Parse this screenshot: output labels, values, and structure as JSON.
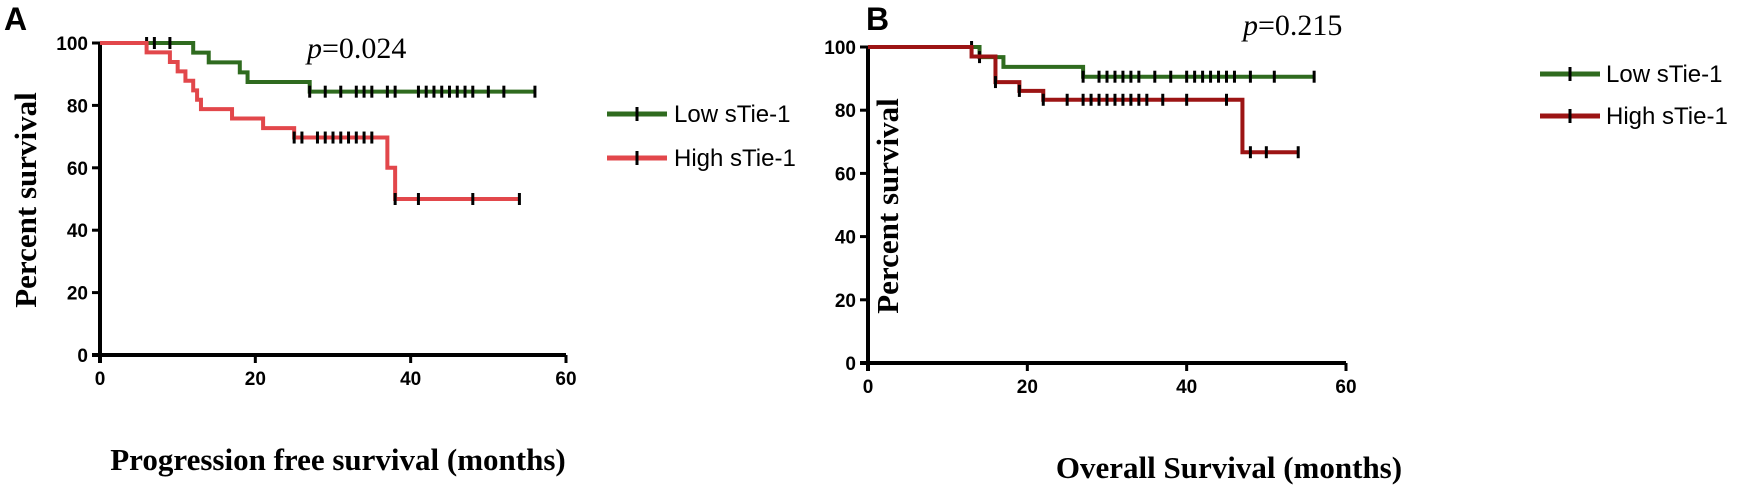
{
  "colors": {
    "low_A": "#2f6b1f",
    "high_A": "#e2474b",
    "low_B": "#2f6b1f",
    "high_B": "#9c1414",
    "axis": "#000000"
  },
  "chart_data": [
    {
      "type": "line",
      "step": true,
      "panel_label": "A",
      "annotation_p": "p",
      "annotation_value": "=0.024",
      "xlabel": "Progression free survival (months)",
      "ylabel": "Percent survival",
      "xlim": [
        0,
        60
      ],
      "ylim": [
        0,
        100
      ],
      "xticks": [
        0,
        20,
        40,
        60
      ],
      "yticks": [
        0,
        20,
        40,
        60,
        80,
        100
      ],
      "legend_position": "right",
      "series": [
        {
          "name": "Low sTie-1",
          "color_key": "low_A",
          "steps": [
            [
              0,
              100
            ],
            [
              12,
              96.9
            ],
            [
              14,
              93.8
            ],
            [
              18,
              90.6
            ],
            [
              19,
              87.5
            ],
            [
              27,
              84.4
            ],
            [
              56,
              84.4
            ]
          ],
          "censored": [
            [
              6,
              100
            ],
            [
              7,
              100
            ],
            [
              9,
              100
            ],
            [
              27,
              84.4
            ],
            [
              29,
              84.4
            ],
            [
              31,
              84.4
            ],
            [
              33,
              84.4
            ],
            [
              34,
              84.4
            ],
            [
              35,
              84.4
            ],
            [
              37,
              84.4
            ],
            [
              38,
              84.4
            ],
            [
              41,
              84.4
            ],
            [
              42,
              84.4
            ],
            [
              43,
              84.4
            ],
            [
              44,
              84.4
            ],
            [
              45,
              84.4
            ],
            [
              46,
              84.4
            ],
            [
              47,
              84.4
            ],
            [
              48,
              84.4
            ],
            [
              50,
              84.4
            ],
            [
              52,
              84.4
            ],
            [
              56,
              84.4
            ]
          ]
        },
        {
          "name": "High sTie-1",
          "color_key": "high_A",
          "steps": [
            [
              0,
              100
            ],
            [
              6,
              97
            ],
            [
              9,
              93.9
            ],
            [
              10,
              90.9
            ],
            [
              11,
              87.9
            ],
            [
              12,
              84.8
            ],
            [
              12.5,
              81.8
            ],
            [
              13,
              78.8
            ],
            [
              17,
              75.8
            ],
            [
              21,
              72.7
            ],
            [
              25,
              69.7
            ],
            [
              37,
              60
            ],
            [
              38,
              50
            ],
            [
              54,
              50
            ]
          ],
          "censored": [
            [
              25,
              69.7
            ],
            [
              26,
              69.7
            ],
            [
              28,
              69.7
            ],
            [
              29,
              69.7
            ],
            [
              30,
              69.7
            ],
            [
              31,
              69.7
            ],
            [
              32,
              69.7
            ],
            [
              33,
              69.7
            ],
            [
              34,
              69.7
            ],
            [
              35,
              69.7
            ],
            [
              38,
              50
            ],
            [
              41,
              50
            ],
            [
              48,
              50
            ],
            [
              54,
              50
            ]
          ]
        }
      ]
    },
    {
      "type": "line",
      "step": true,
      "panel_label": "B",
      "annotation_p": "p",
      "annotation_value": "=0.215",
      "xlabel": "Overall Survival (months)",
      "ylabel": "Percent survival",
      "xlim": [
        0,
        60
      ],
      "ylim": [
        0,
        100
      ],
      "xticks": [
        0,
        20,
        40,
        60
      ],
      "yticks": [
        0,
        20,
        40,
        60,
        80,
        100
      ],
      "legend_position": "right",
      "series": [
        {
          "name": "Low sTie-1",
          "color_key": "low_B",
          "steps": [
            [
              0,
              100
            ],
            [
              13,
              100
            ],
            [
              14,
              96.8
            ],
            [
              17,
              93.7
            ],
            [
              27,
              90.6
            ],
            [
              56,
              90.6
            ]
          ],
          "censored": [
            [
              13,
              100
            ],
            [
              14,
              96.8
            ],
            [
              27,
              90.6
            ],
            [
              29,
              90.6
            ],
            [
              30,
              90.6
            ],
            [
              31,
              90.6
            ],
            [
              32,
              90.6
            ],
            [
              33,
              90.6
            ],
            [
              34,
              90.6
            ],
            [
              36,
              90.6
            ],
            [
              38,
              90.6
            ],
            [
              40,
              90.6
            ],
            [
              41,
              90.6
            ],
            [
              42,
              90.6
            ],
            [
              43,
              90.6
            ],
            [
              44,
              90.6
            ],
            [
              45,
              90.6
            ],
            [
              46,
              90.6
            ],
            [
              48,
              90.6
            ],
            [
              51,
              90.6
            ],
            [
              56,
              90.6
            ]
          ]
        },
        {
          "name": "High sTie-1",
          "color_key": "high_B",
          "steps": [
            [
              0,
              100
            ],
            [
              13,
              97
            ],
            [
              16,
              88.9
            ],
            [
              19,
              86.1
            ],
            [
              22,
              83.3
            ],
            [
              47,
              66.7
            ],
            [
              54,
              66.7
            ]
          ],
          "censored": [
            [
              16,
              88.9
            ],
            [
              19,
              86.1
            ],
            [
              22,
              83.3
            ],
            [
              25,
              83.3
            ],
            [
              27,
              83.3
            ],
            [
              28,
              83.3
            ],
            [
              29,
              83.3
            ],
            [
              30,
              83.3
            ],
            [
              31,
              83.3
            ],
            [
              32,
              83.3
            ],
            [
              33,
              83.3
            ],
            [
              34,
              83.3
            ],
            [
              35,
              83.3
            ],
            [
              37,
              83.3
            ],
            [
              40,
              83.3
            ],
            [
              45,
              83.3
            ],
            [
              48,
              66.7
            ],
            [
              50,
              66.7
            ],
            [
              54,
              66.7
            ]
          ]
        }
      ]
    }
  ]
}
